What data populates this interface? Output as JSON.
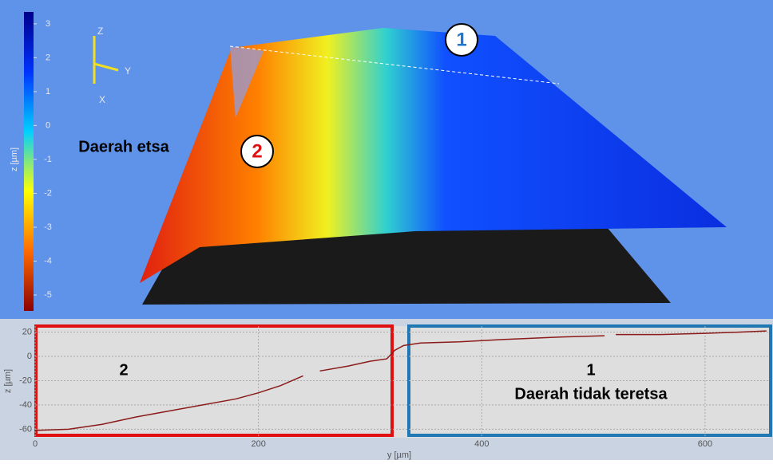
{
  "chart_data": [
    {
      "type": "surface3d",
      "colorbar": {
        "label": "z [µm]",
        "lim": [
          -5.47,
          3.35
        ],
        "ticks": [
          3,
          2,
          1,
          0,
          -1,
          -2,
          -3,
          -4,
          -5
        ]
      },
      "axis_labels": [
        "Z",
        "Y",
        "X"
      ],
      "markers": [
        "1",
        "2"
      ]
    },
    {
      "type": "line",
      "xlabel": "y [µm]",
      "ylabel": "z [µm]",
      "xlim": [
        0,
        658
      ],
      "ylim": [
        -67,
        25
      ],
      "xticks": [
        0,
        200,
        400,
        600
      ],
      "yticks": [
        20,
        0,
        -20,
        -40,
        -60
      ],
      "grid": true,
      "series": [
        {
          "color": "#8b1a1a",
          "x": [
            0,
            30,
            60,
            90,
            120,
            150,
            180,
            200,
            220,
            240,
            248,
            255,
            280,
            300,
            315,
            322,
            330,
            345,
            380,
            420,
            470,
            510,
            515,
            520,
            560,
            600,
            630,
            655
          ],
          "values": [
            -61,
            -60,
            -56,
            -50,
            -45,
            -40,
            -35,
            -30,
            -24,
            -16,
            null,
            -12,
            -8,
            -4,
            -2,
            5,
            9,
            11,
            12,
            14,
            16,
            17,
            null,
            18,
            18,
            19,
            20,
            21
          ]
        }
      ],
      "annotations": [
        {
          "label": "2",
          "text": "Daerah etsa"
        },
        {
          "label": "1",
          "text": "Daerah tidak teretsa"
        }
      ]
    }
  ]
}
